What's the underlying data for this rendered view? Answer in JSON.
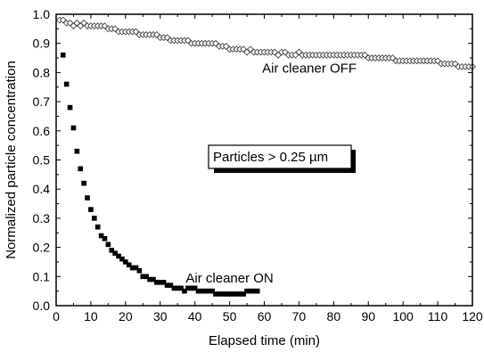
{
  "chart_data": {
    "type": "scatter",
    "xlabel": "Elapsed time (min)",
    "ylabel": "Normalized particle concentration",
    "xlim": [
      0,
      120
    ],
    "ylim": [
      0,
      1.0
    ],
    "x_ticks": [
      0,
      10,
      20,
      30,
      40,
      50,
      60,
      70,
      80,
      90,
      100,
      110,
      120
    ],
    "y_ticks": [
      0.0,
      0.1,
      0.2,
      0.3,
      0.4,
      0.5,
      0.6,
      0.7,
      0.8,
      0.9,
      1.0
    ],
    "x_tick_labels": [
      "0",
      "10",
      "20",
      "30",
      "40",
      "50",
      "60",
      "70",
      "80",
      "90",
      "100",
      "110",
      "120"
    ],
    "y_tick_labels": [
      "0.0",
      "0.1",
      "0.2",
      "0.3",
      "0.4",
      "0.5",
      "0.6",
      "0.7",
      "0.8",
      "0.9",
      "1.0"
    ],
    "grid": false,
    "series": [
      {
        "name": "Air cleaner OFF",
        "marker": "open-diamond",
        "color": "#000000",
        "x": [
          1,
          2,
          3,
          4,
          5,
          6,
          7,
          8,
          9,
          10,
          11,
          12,
          13,
          14,
          15,
          16,
          17,
          18,
          19,
          20,
          21,
          22,
          23,
          24,
          25,
          26,
          27,
          28,
          29,
          30,
          31,
          32,
          33,
          34,
          35,
          36,
          37,
          38,
          39,
          40,
          41,
          42,
          43,
          44,
          45,
          46,
          47,
          48,
          49,
          50,
          51,
          52,
          53,
          54,
          55,
          56,
          57,
          58,
          59,
          60,
          61,
          62,
          63,
          64,
          65,
          66,
          67,
          68,
          69,
          70,
          71,
          72,
          73,
          74,
          75,
          76,
          77,
          78,
          79,
          80,
          81,
          82,
          83,
          84,
          85,
          86,
          87,
          88,
          89,
          90,
          91,
          92,
          93,
          94,
          95,
          96,
          97,
          98,
          99,
          100,
          101,
          102,
          103,
          104,
          105,
          106,
          107,
          108,
          109,
          110,
          111,
          112,
          113,
          114,
          115,
          116,
          117,
          118,
          119,
          120
        ],
        "y": [
          0.98,
          0.98,
          0.97,
          0.97,
          0.96,
          0.97,
          0.96,
          0.97,
          0.96,
          0.96,
          0.96,
          0.96,
          0.96,
          0.96,
          0.95,
          0.95,
          0.95,
          0.94,
          0.94,
          0.94,
          0.94,
          0.94,
          0.94,
          0.93,
          0.93,
          0.93,
          0.93,
          0.93,
          0.93,
          0.92,
          0.92,
          0.92,
          0.91,
          0.91,
          0.91,
          0.91,
          0.91,
          0.91,
          0.9,
          0.9,
          0.9,
          0.9,
          0.9,
          0.9,
          0.9,
          0.9,
          0.89,
          0.89,
          0.89,
          0.88,
          0.88,
          0.88,
          0.88,
          0.88,
          0.87,
          0.88,
          0.87,
          0.87,
          0.87,
          0.87,
          0.87,
          0.87,
          0.87,
          0.86,
          0.87,
          0.87,
          0.86,
          0.86,
          0.86,
          0.87,
          0.86,
          0.86,
          0.86,
          0.86,
          0.86,
          0.86,
          0.86,
          0.86,
          0.86,
          0.86,
          0.86,
          0.86,
          0.86,
          0.86,
          0.86,
          0.86,
          0.86,
          0.86,
          0.86,
          0.85,
          0.85,
          0.85,
          0.85,
          0.85,
          0.85,
          0.85,
          0.85,
          0.84,
          0.84,
          0.84,
          0.84,
          0.84,
          0.84,
          0.84,
          0.84,
          0.84,
          0.84,
          0.84,
          0.84,
          0.84,
          0.83,
          0.83,
          0.83,
          0.83,
          0.83,
          0.82,
          0.82,
          0.82,
          0.82,
          0.82
        ]
      },
      {
        "name": "Air cleaner ON",
        "marker": "filled-square",
        "color": "#000000",
        "x": [
          2,
          3,
          4,
          5,
          6,
          7,
          8,
          9,
          10,
          11,
          12,
          13,
          14,
          15,
          16,
          17,
          18,
          19,
          20,
          21,
          22,
          23,
          24,
          25,
          26,
          27,
          28,
          29,
          30,
          31,
          32,
          33,
          34,
          35,
          36,
          37,
          38,
          39,
          40,
          41,
          42,
          43,
          44,
          45,
          46,
          47,
          48,
          49,
          50,
          51,
          52,
          53,
          54,
          55,
          56,
          57,
          58
        ],
        "y": [
          0.86,
          0.76,
          0.68,
          0.61,
          0.53,
          0.47,
          0.42,
          0.37,
          0.33,
          0.3,
          0.27,
          0.24,
          0.23,
          0.21,
          0.19,
          0.18,
          0.17,
          0.16,
          0.15,
          0.14,
          0.13,
          0.13,
          0.12,
          0.1,
          0.1,
          0.09,
          0.09,
          0.08,
          0.08,
          0.08,
          0.07,
          0.07,
          0.06,
          0.06,
          0.06,
          0.05,
          0.06,
          0.06,
          0.06,
          0.05,
          0.05,
          0.05,
          0.05,
          0.05,
          0.04,
          0.04,
          0.04,
          0.04,
          0.04,
          0.04,
          0.04,
          0.04,
          0.04,
          0.05,
          0.05,
          0.05,
          0.05
        ]
      }
    ],
    "annotations": [
      {
        "text": "Air cleaner OFF",
        "x": 73,
        "y": 0.815
      },
      {
        "text": "Air cleaner ON",
        "x": 50,
        "y": 0.095
      }
    ],
    "inset_label": "Particles > 0.25 µm"
  }
}
